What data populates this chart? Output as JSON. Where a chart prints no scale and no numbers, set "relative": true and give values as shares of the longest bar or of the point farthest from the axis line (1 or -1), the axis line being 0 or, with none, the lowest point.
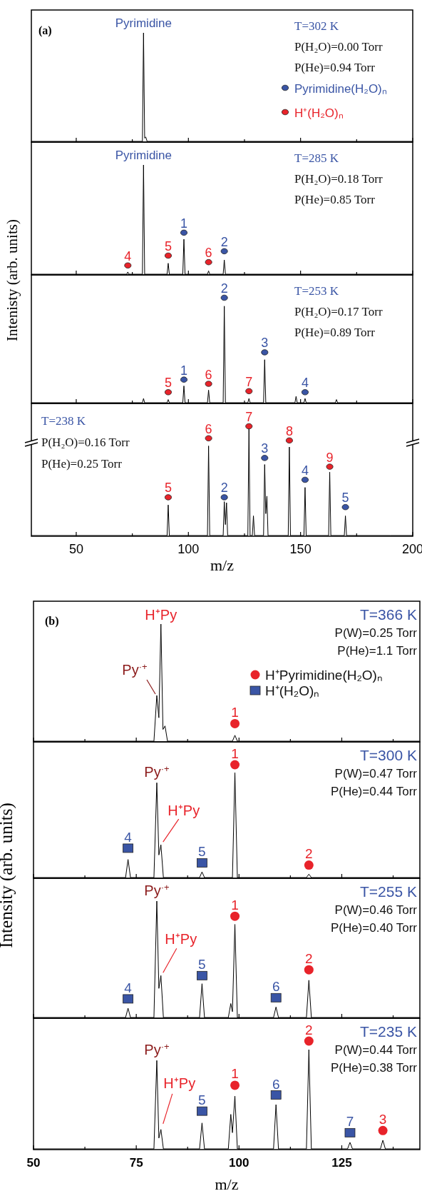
{
  "chart_data": [
    {
      "type": "line",
      "title": "(a)",
      "relative": true,
      "xlim": [
        30,
        200
      ],
      "xticks": [
        50,
        {
          "value": 75,
          "label": null
        },
        100,
        {
          "value": 125,
          "label": null
        },
        150,
        {
          "value": 175,
          "label": null
        },
        200
      ],
      "tick_labels": false,
      "legend": "right",
      "annotations": [
        "T=302 K",
        "P(H₂O)=0.00 Torr",
        "P(He)=0.94 Torr",
        {
          "text": "Pyrimidine",
          "x": 80,
          "y": 1
        }
      ],
      "series": [
        {
          "color": "#000000",
          "x": [
            30,
            79.5,
            80,
            80.5,
            81,
            81.6,
            200
          ],
          "values": [
            0,
            0,
            1,
            0.03,
            0.04,
            0,
            0
          ]
        },
        {
          "type": "scatter",
          "name": "Pyrimidine(H₂O)ₙ",
          "marker": "circle",
          "color": "#3a55a5"
        },
        {
          "type": "scatter",
          "name": "H⁺(H₂O)ₙ",
          "marker": "circle",
          "color": "#e8232a"
        }
      ]
    },
    {
      "type": "line",
      "relative": true,
      "xlim": [
        30,
        200
      ],
      "xticks": [
        50,
        {
          "value": 75,
          "label": null
        },
        100,
        {
          "value": 125,
          "label": null
        },
        150,
        {
          "value": 175,
          "label": null
        },
        200
      ],
      "tick_labels": false,
      "ylabel": "Intenisty (arb. units)",
      "annotations": [
        "T=285 K",
        "P(H₂O)=0.18 Torr",
        "P(He)=0.85 Torr",
        {
          "text": "Pyrimidine",
          "x": 80,
          "y": 1
        },
        {
          "text": "1",
          "x": 98,
          "y": 0.38
        },
        {
          "text": "2",
          "x": 116,
          "y": 0.21
        },
        {
          "text": "4",
          "x": 73,
          "y": 0.08
        },
        {
          "text": "5",
          "x": 91,
          "y": 0.17
        },
        {
          "text": "6",
          "x": 109,
          "y": 0.11
        }
      ],
      "series": [
        {
          "color": "#000000",
          "x": [
            30,
            72.5,
            73,
            73.5,
            79.5,
            80,
            80.5,
            90.5,
            91,
            91.5,
            97.5,
            98,
            98.5,
            108.5,
            109,
            109.5,
            115.5,
            116,
            116.5,
            200
          ],
          "values": [
            0,
            0,
            0.02,
            0,
            0,
            1,
            0,
            0,
            0.1,
            0,
            0,
            0.32,
            0,
            0,
            0.03,
            0,
            0,
            0.13,
            0,
            0
          ]
        },
        {
          "type": "scatter",
          "marker": "circle",
          "color": "#3a55a5",
          "x": [
            98,
            116
          ],
          "values": [
            0.38,
            0.21
          ]
        },
        {
          "type": "scatter",
          "marker": "circle",
          "color": "#e8232a",
          "x": [
            73,
            91,
            109
          ],
          "values": [
            0.08,
            0.17,
            0.11
          ]
        }
      ]
    },
    {
      "type": "line",
      "relative": true,
      "xlim": [
        30,
        200
      ],
      "xticks": [
        50,
        {
          "value": 75,
          "label": null
        },
        100,
        {
          "value": 125,
          "label": null
        },
        150,
        {
          "value": 175,
          "label": null
        },
        200
      ],
      "tick_labels": false,
      "annotations": [
        "T=253 K",
        "P(H₂O)=0.17 Torr",
        "P(He)=0.89 Torr",
        {
          "text": "1",
          "x": 98,
          "y": 0.22
        },
        {
          "text": "2",
          "x": 116,
          "y": 1
        },
        {
          "text": "3",
          "x": 134,
          "y": 0.48
        },
        {
          "text": "4",
          "x": 152,
          "y": 0.1
        },
        {
          "text": "5",
          "x": 91,
          "y": 0.1
        },
        {
          "text": "6",
          "x": 109,
          "y": 0.18
        },
        {
          "text": "7",
          "x": 127,
          "y": 0.11
        }
      ],
      "series": [
        {
          "color": "#000000",
          "x": [
            30,
            79.5,
            80,
            80.5,
            90.5,
            91,
            91.5,
            97.5,
            98,
            98.5,
            108.5,
            109,
            109.5,
            115.5,
            116,
            116.5,
            126.5,
            127,
            127.5,
            133.5,
            134,
            134.5,
            147.5,
            148,
            148.5,
            151.5,
            152,
            152.5,
            165.5,
            166,
            166.5,
            200
          ],
          "values": [
            0,
            0,
            0.04,
            0,
            0,
            0.03,
            0,
            0,
            0.16,
            0,
            0,
            0.12,
            0,
            0,
            0.92,
            0,
            0,
            0.04,
            0,
            0,
            0.41,
            0,
            0,
            0.06,
            0,
            0,
            0.04,
            0,
            0,
            0.03,
            0,
            0
          ]
        },
        {
          "type": "scatter",
          "marker": "circle",
          "color": "#3a55a5",
          "x": [
            98,
            116,
            134,
            152
          ],
          "values": [
            0.22,
            1,
            0.48,
            0.1
          ]
        },
        {
          "type": "scatter",
          "marker": "circle",
          "color": "#e8232a",
          "x": [
            91,
            109,
            127
          ],
          "values": [
            0.1,
            0.18,
            0.11
          ]
        }
      ]
    },
    {
      "type": "line",
      "relative": true,
      "xlim": [
        30,
        200
      ],
      "xticks": [
        50,
        {
          "value": 75,
          "label": null
        },
        100,
        {
          "value": 125,
          "label": null
        },
        150,
        {
          "value": 175,
          "label": null
        },
        200
      ],
      "tick_labels": "x",
      "xlabel": "m/z",
      "annotations": [
        "T=238 K",
        "P(H₂O)=0.16 Torr",
        "P(He)=0.25 Torr",
        {
          "text": "2",
          "x": 116,
          "y": 0.35
        },
        {
          "text": "3",
          "x": 134,
          "y": 0.71
        },
        {
          "text": "4",
          "x": 152,
          "y": 0.51
        },
        {
          "text": "5",
          "x": 170,
          "y": 0.26
        },
        {
          "text": "5",
          "x": 91,
          "y": 0.35
        },
        {
          "text": "6",
          "x": 109,
          "y": 0.89
        },
        {
          "text": "7",
          "x": 127,
          "y": 1
        },
        {
          "text": "8",
          "x": 145,
          "y": 0.87
        },
        {
          "text": "9",
          "x": 163,
          "y": 0.63
        }
      ],
      "series": [
        {
          "color": "#000000",
          "x": [
            30,
            90.5,
            91,
            91.5,
            108.5,
            109,
            109.5,
            115.5,
            116,
            116.5,
            117,
            117.5,
            126.5,
            127,
            127.5,
            128.5,
            129,
            129.5,
            133.5,
            134,
            134.5,
            135,
            135.5,
            144.5,
            145,
            145.5,
            151.5,
            152,
            152.5,
            162.5,
            163,
            163.5,
            169.5,
            170,
            170.5,
            190,
            200
          ],
          "values": [
            0,
            0,
            0.28,
            0,
            0,
            0.82,
            0,
            0,
            0.31,
            0.1,
            0.3,
            0,
            0,
            0.98,
            0,
            0,
            0.18,
            0,
            0,
            0.65,
            0.2,
            0.36,
            0,
            0,
            0.81,
            0,
            0,
            0.44,
            0,
            0,
            0.58,
            0,
            0,
            0.18,
            0,
            0,
            0
          ]
        },
        {
          "type": "scatter",
          "marker": "circle",
          "color": "#3a55a5",
          "x": [
            116,
            134,
            152,
            170
          ],
          "values": [
            0.35,
            0.71,
            0.51,
            0.26
          ]
        },
        {
          "type": "scatter",
          "marker": "circle",
          "color": "#e8232a",
          "x": [
            91,
            109,
            127,
            145,
            163
          ],
          "values": [
            0.35,
            0.89,
            1,
            0.87,
            0.63
          ]
        }
      ]
    },
    {
      "type": "line",
      "title": "(b)",
      "relative": true,
      "xlim": [
        50,
        144
      ],
      "xticks": [
        50,
        {
          "value": 62.5,
          "label": null
        },
        75,
        {
          "value": 87.5,
          "label": null
        },
        100,
        {
          "value": 112.5,
          "label": null
        },
        125,
        {
          "value": 137.5,
          "label": null
        }
      ],
      "tick_labels": false,
      "legend": "right",
      "annotations": [
        "T=366 K",
        "P(W)=0.25 Torr",
        "P(He)=1.1 Torr",
        {
          "text": "H⁺Py",
          "x": 81,
          "y": 1
        },
        {
          "text": "Py$^{·+}$",
          "x": 80,
          "y": 0.39
        },
        {
          "text": "1",
          "x": 99,
          "y": 0.15
        }
      ],
      "series": [
        {
          "color": "#000000",
          "x": [
            50,
            79.3,
            80,
            80.5,
            81,
            81.5,
            82,
            82.6,
            98.4,
            99,
            99.6,
            144
          ],
          "values": [
            0,
            0,
            0.39,
            0.2,
            1,
            0.1,
            0.13,
            0,
            0,
            0.05,
            0,
            0
          ]
        },
        {
          "type": "scatter",
          "name": "H⁺Pyrimidine(H₂O)ₙ",
          "marker": "circle",
          "color": "#e8232a",
          "x": [
            99
          ],
          "values": [
            0.15
          ]
        },
        {
          "type": "scatter",
          "name": "H⁺(H₂O)ₙ",
          "marker": "square",
          "color": "#3a55a5"
        }
      ]
    },
    {
      "type": "line",
      "relative": true,
      "xlim": [
        50,
        144
      ],
      "xticks": [
        50,
        {
          "value": 62.5,
          "label": null
        },
        75,
        {
          "value": 87.5,
          "label": null
        },
        100,
        {
          "value": 112.5,
          "label": null
        },
        125,
        {
          "value": 137.5,
          "label": null
        }
      ],
      "tick_labels": false,
      "ylabel": "Intensity (arb. units)",
      "annotations": [
        "T=300 K",
        "P(W)=0.47 Torr",
        "P(He)=0.44 Torr",
        {
          "text": "Py$^{·+}$",
          "x": 80,
          "y": 0.84
        },
        {
          "text": "H⁺Py",
          "x": 81,
          "y": 0.29
        },
        {
          "text": "1",
          "x": 99,
          "y": 1
        },
        {
          "text": "2",
          "x": 117,
          "y": 0.11
        },
        {
          "text": "4",
          "x": 73,
          "y": 0.26
        },
        {
          "text": "5",
          "x": 91,
          "y": 0.13
        }
      ],
      "series": [
        {
          "color": "#000000",
          "x": [
            50,
            72.4,
            73,
            73.6,
            79.3,
            80,
            80.5,
            81,
            81.6,
            90.4,
            91,
            91.6,
            98.4,
            99,
            99.6,
            116.4,
            117,
            117.6,
            144
          ],
          "values": [
            0,
            0,
            0.16,
            0,
            0,
            0.84,
            0.2,
            0.29,
            0,
            0,
            0.05,
            0,
            0,
            0.93,
            0,
            0,
            0.03,
            0,
            0
          ]
        },
        {
          "type": "scatter",
          "marker": "circle",
          "color": "#e8232a",
          "x": [
            99,
            117
          ],
          "values": [
            1,
            0.11
          ]
        },
        {
          "type": "scatter",
          "marker": "square",
          "color": "#3a55a5",
          "x": [
            73,
            91
          ],
          "values": [
            0.26,
            0.13
          ]
        }
      ]
    },
    {
      "type": "line",
      "relative": true,
      "xlim": [
        50,
        144
      ],
      "xticks": [
        50,
        {
          "value": 62.5,
          "label": null
        },
        75,
        {
          "value": 87.5,
          "label": null
        },
        100,
        {
          "value": 112.5,
          "label": null
        },
        125,
        {
          "value": 137.5,
          "label": null
        }
      ],
      "tick_labels": false,
      "annotations": [
        "T=255 K",
        "P(W)=0.46 Torr",
        "P(He)=0.40 Torr",
        {
          "text": "Py$^{·+}$",
          "x": 80,
          "y": 1
        },
        {
          "text": "H⁺Py",
          "x": 81,
          "y": 0.36
        },
        {
          "text": "1",
          "x": 99,
          "y": 0.87
        },
        {
          "text": "2",
          "x": 117,
          "y": 0.41
        },
        {
          "text": "4",
          "x": 73,
          "y": 0.16
        },
        {
          "text": "5",
          "x": 91,
          "y": 0.36
        },
        {
          "text": "6",
          "x": 109,
          "y": 0.17
        }
      ],
      "series": [
        {
          "color": "#000000",
          "x": [
            50,
            72.4,
            73,
            73.6,
            79.3,
            80,
            80.5,
            81,
            81.6,
            90.4,
            91,
            91.6,
            97.4,
            98,
            98.4,
            99,
            99.6,
            108.4,
            109,
            109.6,
            116.4,
            117,
            117.6,
            144
          ],
          "values": [
            0,
            0,
            0.08,
            0,
            0,
            1,
            0.25,
            0.36,
            0,
            0,
            0.29,
            0,
            0,
            0.12,
            0.05,
            0.8,
            0,
            0,
            0.09,
            0,
            0,
            0.32,
            0,
            0
          ]
        },
        {
          "type": "scatter",
          "marker": "circle",
          "color": "#e8232a",
          "x": [
            99,
            117
          ],
          "values": [
            0.87,
            0.41
          ]
        },
        {
          "type": "scatter",
          "marker": "square",
          "color": "#3a55a5",
          "x": [
            73,
            91,
            109
          ],
          "values": [
            0.16,
            0.36,
            0.17
          ]
        }
      ]
    },
    {
      "type": "line",
      "relative": true,
      "xlim": [
        50,
        144
      ],
      "xticks": [
        50,
        {
          "value": 62.5,
          "label": null
        },
        75,
        {
          "value": 87.5,
          "label": null
        },
        100,
        {
          "value": 112.5,
          "label": null
        },
        125,
        {
          "value": 137.5,
          "label": null
        }
      ],
      "tick_labels": "x",
      "xlabel": "m/z",
      "annotations": [
        "T=235 K",
        "P(W)=0.44 Torr",
        "P(He)=0.38 Torr",
        {
          "text": "Py$^{·+}$",
          "x": 80,
          "y": 0.82
        },
        {
          "text": "H⁺Py",
          "x": 81,
          "y": 0.18
        },
        {
          "text": "1",
          "x": 99,
          "y": 0.59
        },
        {
          "text": "2",
          "x": 117,
          "y": 1
        },
        {
          "text": "3",
          "x": 135,
          "y": 0.17
        },
        {
          "text": "5",
          "x": 91,
          "y": 0.35
        },
        {
          "text": "6",
          "x": 109,
          "y": 0.5
        },
        {
          "text": "7",
          "x": 127,
          "y": 0.15
        }
      ],
      "series": [
        {
          "color": "#000000",
          "x": [
            50,
            79.3,
            80,
            80.5,
            81,
            81.6,
            90.4,
            91,
            91.6,
            97.4,
            98,
            98.4,
            99,
            99.6,
            108.4,
            109,
            109.6,
            116.4,
            117,
            117.6,
            126.4,
            127,
            127.6,
            134.4,
            135,
            135.6,
            144
          ],
          "values": [
            0,
            0,
            0.82,
            0.1,
            0.18,
            0,
            0,
            0.24,
            0,
            0,
            0.32,
            0.15,
            0.49,
            0,
            0,
            0.41,
            0,
            0,
            0.92,
            0,
            0,
            0.06,
            0,
            0,
            0.08,
            0,
            0
          ]
        },
        {
          "type": "scatter",
          "marker": "circle",
          "color": "#e8232a",
          "x": [
            99,
            117,
            135
          ],
          "values": [
            0.59,
            1,
            0.17
          ]
        },
        {
          "type": "scatter",
          "marker": "square",
          "color": "#3a55a5",
          "x": [
            91,
            109,
            127
          ],
          "values": [
            0.35,
            0.5,
            0.15
          ]
        }
      ]
    }
  ]
}
